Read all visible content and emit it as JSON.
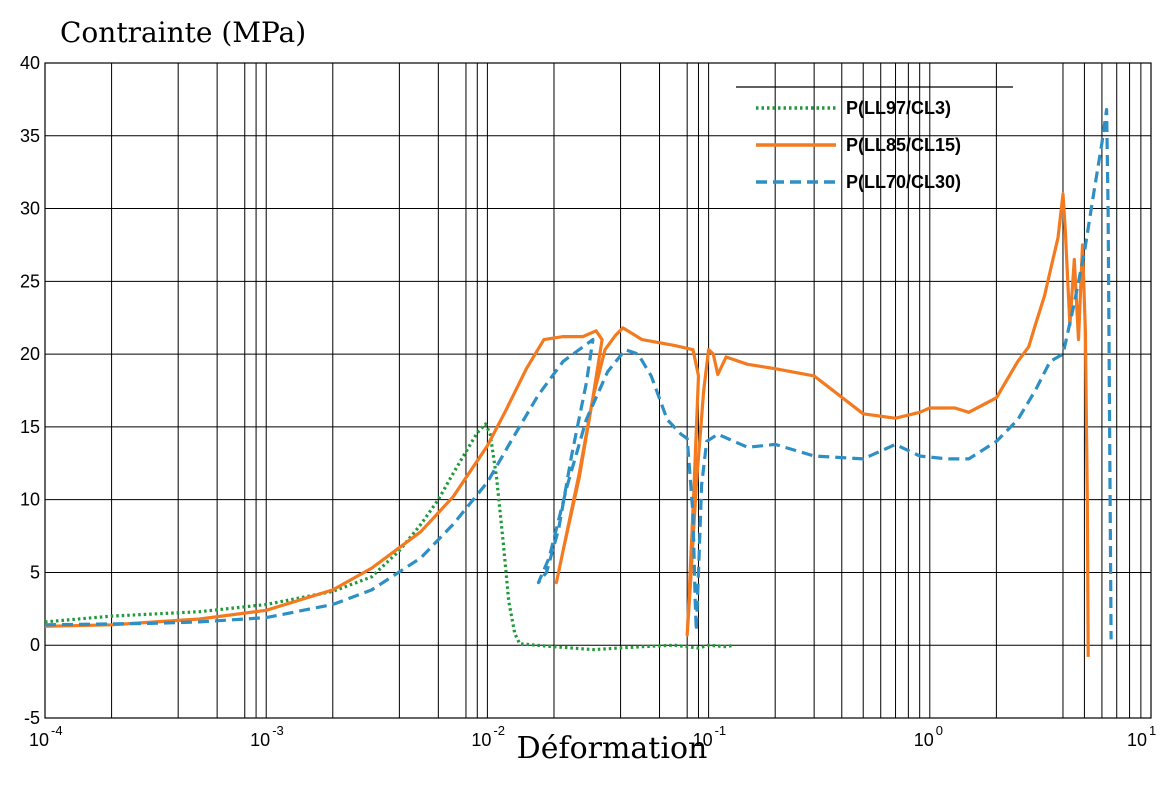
{
  "chart_data": {
    "type": "line",
    "title": "",
    "ylabel": "Contrainte (MPa)",
    "xlabel": "Déformation",
    "xscale": "log",
    "xlim": [
      0.0001,
      10
    ],
    "ylim": [
      -5,
      40
    ],
    "grid": true,
    "legend_position": "top-right",
    "y_ticks": [
      -5,
      0,
      5,
      10,
      15,
      20,
      25,
      30,
      35,
      40
    ],
    "x_ticks": [
      {
        "base": "10",
        "exp": "-4",
        "value": 0.0001
      },
      {
        "base": "10",
        "exp": "-3",
        "value": 0.001
      },
      {
        "base": "10",
        "exp": "-2",
        "value": 0.01
      },
      {
        "base": "10",
        "exp": "-1",
        "value": 0.1
      },
      {
        "base": "10",
        "exp": "0",
        "value": 1
      },
      {
        "base": "10",
        "exp": "1",
        "value": 10
      }
    ],
    "series": [
      {
        "name": "P(LL97/CL3)",
        "color": "#1f9a3a",
        "style": "dotted",
        "points": [
          [
            0.0001,
            1.6
          ],
          [
            0.0002,
            2.0
          ],
          [
            0.0005,
            2.3
          ],
          [
            0.001,
            2.8
          ],
          [
            0.002,
            3.7
          ],
          [
            0.003,
            4.7
          ],
          [
            0.004,
            6.5
          ],
          [
            0.005,
            8.3
          ],
          [
            0.006,
            10.0
          ],
          [
            0.007,
            11.8
          ],
          [
            0.008,
            13.3
          ],
          [
            0.009,
            14.6
          ],
          [
            0.0098,
            15.2
          ],
          [
            0.0103,
            14.5
          ],
          [
            0.011,
            11.5
          ],
          [
            0.0118,
            7.0
          ],
          [
            0.0125,
            3.0
          ],
          [
            0.0133,
            0.8
          ],
          [
            0.014,
            0.1
          ],
          [
            0.02,
            -0.1
          ],
          [
            0.03,
            -0.3
          ],
          [
            0.05,
            -0.1
          ],
          [
            0.07,
            0.0
          ],
          [
            0.09,
            -0.2
          ],
          [
            0.1,
            0.0
          ],
          [
            0.12,
            -0.1
          ],
          [
            0.13,
            0.0
          ]
        ]
      },
      {
        "name": "P(LL85/CL15)",
        "color": "#f47a20",
        "style": "solid",
        "points": [
          [
            0.0001,
            1.3
          ],
          [
            0.0002,
            1.4
          ],
          [
            0.0005,
            1.8
          ],
          [
            0.001,
            2.4
          ],
          [
            0.002,
            3.8
          ],
          [
            0.003,
            5.3
          ],
          [
            0.005,
            7.8
          ],
          [
            0.007,
            10.2
          ],
          [
            0.01,
            13.7
          ],
          [
            0.012,
            16.0
          ],
          [
            0.015,
            19.0
          ],
          [
            0.018,
            21.0
          ],
          [
            0.022,
            21.2
          ],
          [
            0.027,
            21.2
          ],
          [
            0.031,
            21.6
          ],
          [
            0.033,
            21.0
          ],
          [
            0.03,
            17.0
          ],
          [
            0.026,
            11.5
          ],
          [
            0.022,
            6.5
          ],
          [
            0.0205,
            4.3
          ],
          [
            0.022,
            6.5
          ],
          [
            0.026,
            11.8
          ],
          [
            0.03,
            17.0
          ],
          [
            0.034,
            20.3
          ],
          [
            0.038,
            21.3
          ],
          [
            0.041,
            21.8
          ],
          [
            0.05,
            21.0
          ],
          [
            0.07,
            20.6
          ],
          [
            0.085,
            20.3
          ],
          [
            0.09,
            18.5
          ],
          [
            0.086,
            11.0
          ],
          [
            0.082,
            4.0
          ],
          [
            0.08,
            0.7
          ],
          [
            0.083,
            4.5
          ],
          [
            0.088,
            11.0
          ],
          [
            0.095,
            17.5
          ],
          [
            0.1,
            20.3
          ],
          [
            0.105,
            20.0
          ],
          [
            0.11,
            18.6
          ],
          [
            0.12,
            19.8
          ],
          [
            0.15,
            19.3
          ],
          [
            0.2,
            19.0
          ],
          [
            0.3,
            18.5
          ],
          [
            0.5,
            15.9
          ],
          [
            0.7,
            15.6
          ],
          [
            0.9,
            16.0
          ],
          [
            1.0,
            16.3
          ],
          [
            1.3,
            16.3
          ],
          [
            1.5,
            16.0
          ],
          [
            2.0,
            17.0
          ],
          [
            2.5,
            19.5
          ],
          [
            2.8,
            20.5
          ],
          [
            3.0,
            22.0
          ],
          [
            3.3,
            24.0
          ],
          [
            3.6,
            26.5
          ],
          [
            3.8,
            28.0
          ],
          [
            4.0,
            31.0
          ],
          [
            4.1,
            28.5
          ],
          [
            4.3,
            22.0
          ],
          [
            4.5,
            26.5
          ],
          [
            4.7,
            21.0
          ],
          [
            4.9,
            27.5
          ],
          [
            5.05,
            21.5
          ],
          [
            5.15,
            10.0
          ],
          [
            5.2,
            -0.8
          ]
        ]
      },
      {
        "name": "P(LL70/CL30)",
        "color": "#2e8fc4",
        "style": "dashed",
        "points": [
          [
            0.0001,
            1.4
          ],
          [
            0.0003,
            1.5
          ],
          [
            0.0005,
            1.6
          ],
          [
            0.001,
            1.9
          ],
          [
            0.002,
            2.8
          ],
          [
            0.003,
            3.8
          ],
          [
            0.005,
            6.0
          ],
          [
            0.007,
            8.3
          ],
          [
            0.01,
            11.2
          ],
          [
            0.013,
            14.2
          ],
          [
            0.017,
            17.2
          ],
          [
            0.022,
            19.5
          ],
          [
            0.03,
            21.0
          ],
          [
            0.028,
            18.0
          ],
          [
            0.024,
            13.0
          ],
          [
            0.021,
            8.0
          ],
          [
            0.0185,
            5.0
          ],
          [
            0.017,
            4.3
          ],
          [
            0.019,
            6.0
          ],
          [
            0.023,
            11.0
          ],
          [
            0.028,
            15.5
          ],
          [
            0.035,
            18.8
          ],
          [
            0.042,
            20.3
          ],
          [
            0.048,
            20.0
          ],
          [
            0.055,
            18.5
          ],
          [
            0.065,
            15.5
          ],
          [
            0.075,
            14.5
          ],
          [
            0.08,
            14.2
          ],
          [
            0.085,
            9.0
          ],
          [
            0.087,
            3.0
          ],
          [
            0.088,
            1.0
          ],
          [
            0.09,
            5.0
          ],
          [
            0.093,
            11.0
          ],
          [
            0.098,
            14.0
          ],
          [
            0.11,
            14.5
          ],
          [
            0.15,
            13.6
          ],
          [
            0.2,
            13.8
          ],
          [
            0.3,
            13.0
          ],
          [
            0.5,
            12.8
          ],
          [
            0.7,
            13.8
          ],
          [
            0.9,
            13.0
          ],
          [
            1.2,
            12.8
          ],
          [
            1.5,
            12.8
          ],
          [
            2.0,
            14.0
          ],
          [
            2.5,
            15.5
          ],
          [
            3.0,
            17.5
          ],
          [
            3.5,
            19.5
          ],
          [
            4.0,
            20.0
          ],
          [
            4.5,
            23.5
          ],
          [
            5.0,
            27.0
          ],
          [
            5.5,
            31.0
          ],
          [
            6.0,
            34.5
          ],
          [
            6.3,
            36.8
          ],
          [
            6.4,
            30.0
          ],
          [
            6.5,
            15.0
          ],
          [
            6.6,
            0.4
          ]
        ]
      }
    ]
  }
}
